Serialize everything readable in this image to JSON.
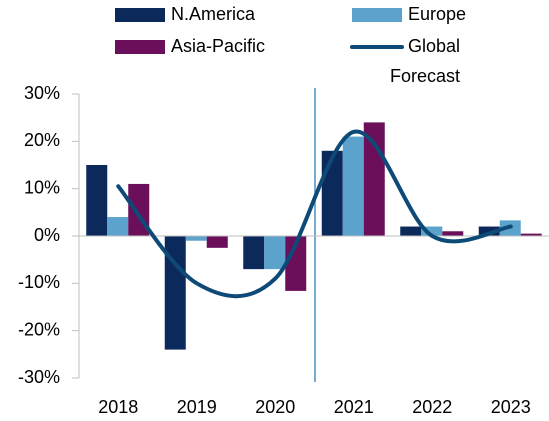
{
  "chart_data": {
    "type": "bar",
    "annotation": "Forecast",
    "categories": [
      "2018",
      "2019",
      "2020",
      "2021",
      "2022",
      "2023"
    ],
    "series": [
      {
        "name": "N.America",
        "color": "#0b2a5b",
        "values": [
          15,
          -24,
          -7,
          18,
          2,
          2
        ]
      },
      {
        "name": "Europe",
        "color": "#5ba3cc",
        "values": [
          4,
          -1,
          -7,
          21,
          2,
          3.3
        ]
      },
      {
        "name": "Asia-Pacific",
        "color": "#6b0f5a",
        "values": [
          11,
          -2.5,
          -11.6,
          24,
          1,
          0.5
        ]
      },
      {
        "name": "Global",
        "type": "line",
        "color": "#0d4a78",
        "values": [
          10.5,
          -10,
          -9,
          22,
          0,
          2
        ]
      }
    ],
    "ylim": [
      -30,
      30
    ],
    "yticks": [
      {
        "value": -30,
        "label": "-30%"
      },
      {
        "value": -20,
        "label": "-20%"
      },
      {
        "value": -10,
        "label": "-10%"
      },
      {
        "value": 0,
        "label": "0%"
      },
      {
        "value": 10,
        "label": "10%"
      },
      {
        "value": 20,
        "label": "20%"
      },
      {
        "value": 30,
        "label": "30%"
      }
    ]
  }
}
